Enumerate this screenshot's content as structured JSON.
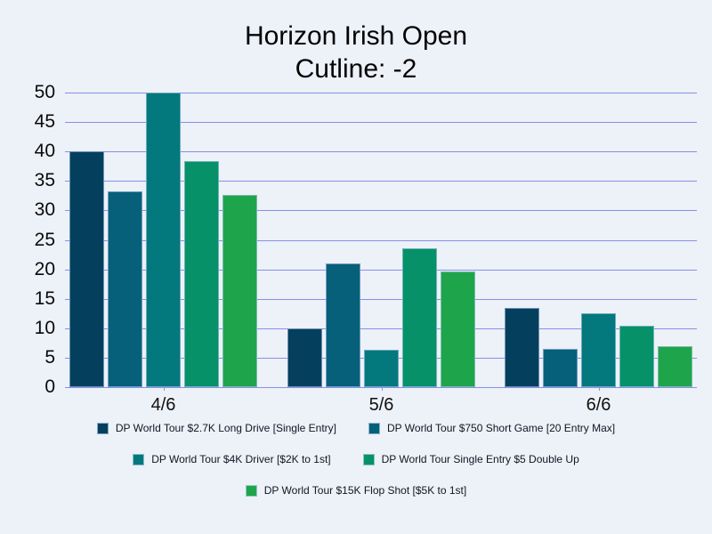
{
  "title": {
    "line1": "Horizon Irish Open",
    "line2": "Cutline: -2"
  },
  "colors": {
    "background": "#edf1f8",
    "gridline": "#8890ea",
    "title_text": "#040404",
    "axis_text": "#0a0a0a",
    "legend_text": "#101623"
  },
  "chart_data": {
    "type": "bar",
    "title": "Horizon Irish Open Cutline: -2",
    "categories": [
      "4/6",
      "5/6",
      "6/6"
    ],
    "series": [
      {
        "name": "DP World Tour $2.7K Long Drive [Single Entry]",
        "color": "#04405e",
        "values": [
          40,
          10,
          13.5
        ]
      },
      {
        "name": "DP World Tour $750 Short Game [20 Entry Max]",
        "color": "#07607a",
        "values": [
          33.2,
          21,
          6.5
        ]
      },
      {
        "name": "DP World Tour $4K Driver [$2K to 1st]",
        "color": "#03787d",
        "values": [
          50,
          6.4,
          12.6
        ]
      },
      {
        "name": "DP World Tour Single Entry $5 Double Up",
        "color": "#069169",
        "values": [
          38.3,
          23.5,
          10.4
        ]
      },
      {
        "name": "DP World Tour $15K Flop Shot [$5K to 1st]",
        "color": "#1ea54b",
        "values": [
          32.7,
          19.7,
          6.9
        ]
      }
    ],
    "xlabel": "",
    "ylabel": "",
    "ylim": [
      0,
      50
    ],
    "yticks": [
      0,
      5,
      10,
      15,
      20,
      25,
      30,
      35,
      40,
      45,
      50
    ],
    "grid": "horizontal",
    "legend_position": "bottom",
    "legend_rows": [
      [
        0,
        1
      ],
      [
        2,
        3
      ],
      [
        4
      ]
    ]
  }
}
